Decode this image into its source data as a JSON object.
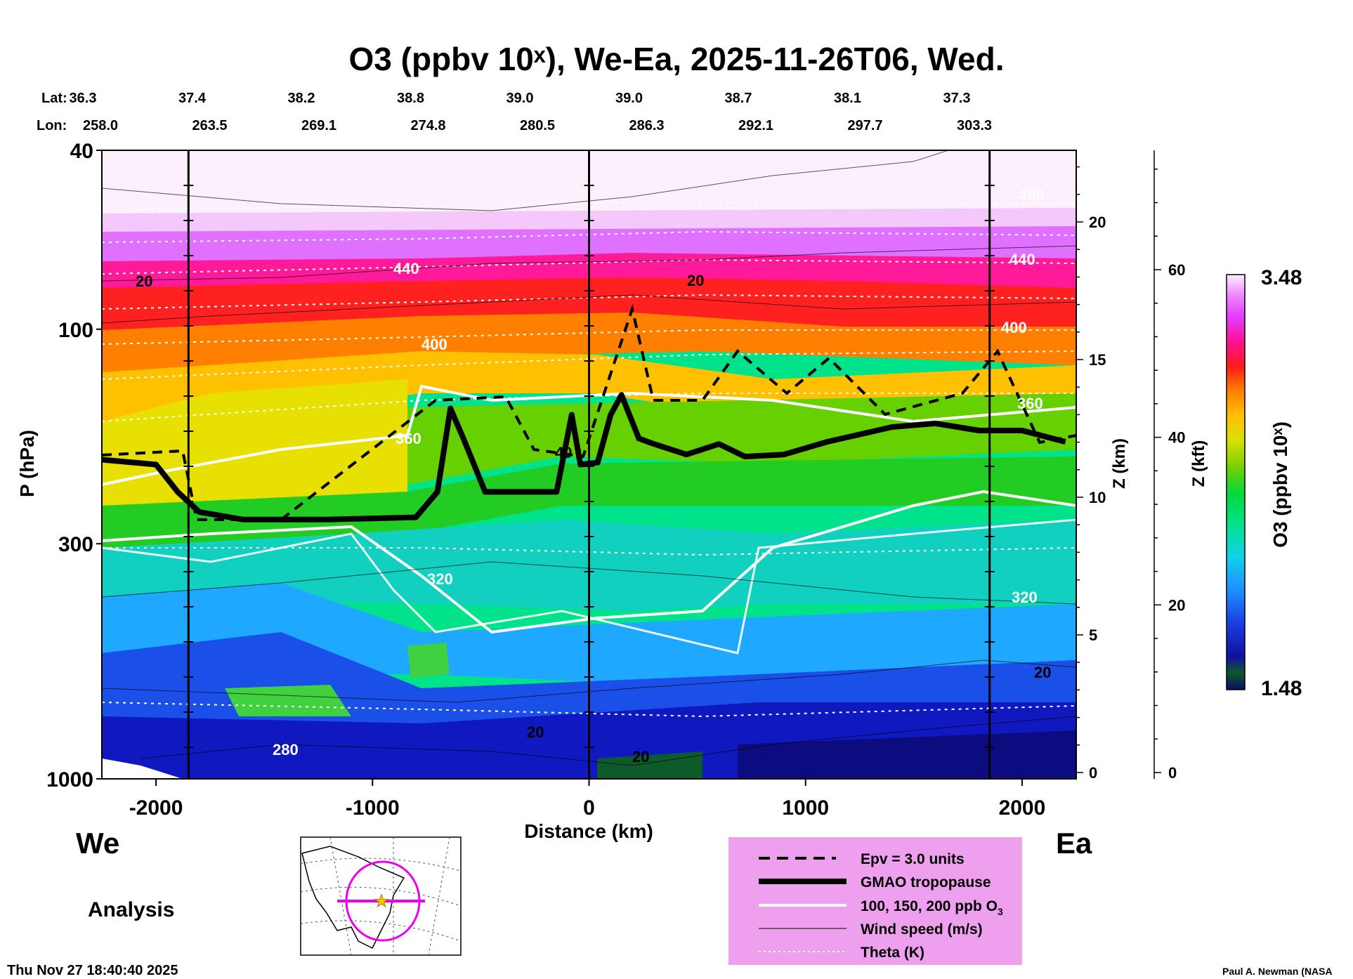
{
  "chart_data": {
    "type": "heatmap",
    "title": "O3 (ppbv 10ˣ), We-Ea, 2025-11-26T06, Wed.",
    "xlabel": "Distance (km)",
    "ylabel": "P (hPa)",
    "z_km_label": "Z (km)",
    "z_kft_label": "Z (kft)",
    "colorbar_label": "O3 (ppbv 10ˣ)",
    "colorbar_max": "3.48",
    "colorbar_min": "1.48",
    "xlim": [
      -2250,
      2250
    ],
    "ylim_hpa": [
      1000,
      40
    ],
    "x_ticks": [
      "-2000",
      "-1000",
      "0",
      "1000",
      "2000"
    ],
    "x_tick_values": [
      -2000,
      -1000,
      0,
      1000,
      2000
    ],
    "p_ticks": [
      "40",
      "100",
      "300",
      "1000"
    ],
    "p_tick_values": [
      40,
      100,
      300,
      1000
    ],
    "z_km_ticks": [
      "0",
      "5",
      "10",
      "15",
      "20"
    ],
    "z_km_values": [
      0,
      5,
      10,
      15,
      20
    ],
    "z_kft_ticks": [
      "0",
      "20",
      "40",
      "60"
    ],
    "z_kft_values": [
      0,
      20,
      40,
      60
    ],
    "lat_label": "Lat:",
    "lon_label": "Lon:",
    "lat": [
      "36.3",
      "37.4",
      "38.2",
      "38.8",
      "39.0",
      "39.0",
      "38.7",
      "38.1",
      "37.3"
    ],
    "lon": [
      "258.0",
      "263.5",
      "269.1",
      "274.8",
      "280.5",
      "286.3",
      "292.1",
      "297.7",
      "303.3"
    ],
    "vertical_marker_distances": [
      -1850,
      0,
      1850
    ],
    "tropopause_hpa": {
      "x": [
        -2250,
        -2000,
        -1900,
        -1800,
        -1600,
        -1200,
        -800,
        -700,
        -640,
        -580,
        -480,
        -420,
        -150,
        -80,
        -40,
        40,
        100,
        150,
        230,
        300,
        450,
        600,
        720,
        900,
        1100,
        1400,
        1600,
        1800,
        2000,
        2200
      ],
      "p": [
        195,
        200,
        230,
        255,
        265,
        265,
        262,
        230,
        150,
        175,
        230,
        230,
        230,
        155,
        200,
        198,
        155,
        140,
        175,
        180,
        190,
        180,
        192,
        190,
        178,
        165,
        162,
        168,
        168,
        178
      ]
    },
    "annotations": {
      "theta_labels": [
        "480",
        "440",
        "440",
        "400",
        "400",
        "360",
        "360",
        "320",
        "320",
        "280"
      ],
      "wind_labels": [
        "20",
        "20",
        "20",
        "20",
        "20"
      ],
      "ozone_label": "40"
    }
  },
  "side_labels": {
    "west": "We",
    "east": "Ea"
  },
  "analysis_label": "Analysis",
  "timestamp": "Thu Nov 27 18:40:40 2025",
  "credit": "Paul A. Newman (NASA",
  "legend": {
    "epv": "Epv = 3.0 units",
    "tropopause": "GMAO tropopause",
    "ozone": "100, 150, 200 ppb O",
    "ozone_sub": "3",
    "wind": "Wind speed (m/s)",
    "theta": "Theta (K)"
  },
  "colors": {
    "legend_bg": "#eea0ee",
    "map_circle": "#ee00ee",
    "map_star": "#ffc000",
    "colorbar": [
      "#0a0a66",
      "#0d5a2a",
      "#1010a0",
      "#1a3fe0",
      "#1e90ff",
      "#12d0ea",
      "#00e38a",
      "#00d840",
      "#7cd000",
      "#d8e000",
      "#ffc000",
      "#ff8000",
      "#ff1a1a",
      "#ff1099",
      "#e040ff",
      "#ee88ff",
      "#fbd8ff",
      "#fff0ff"
    ]
  }
}
